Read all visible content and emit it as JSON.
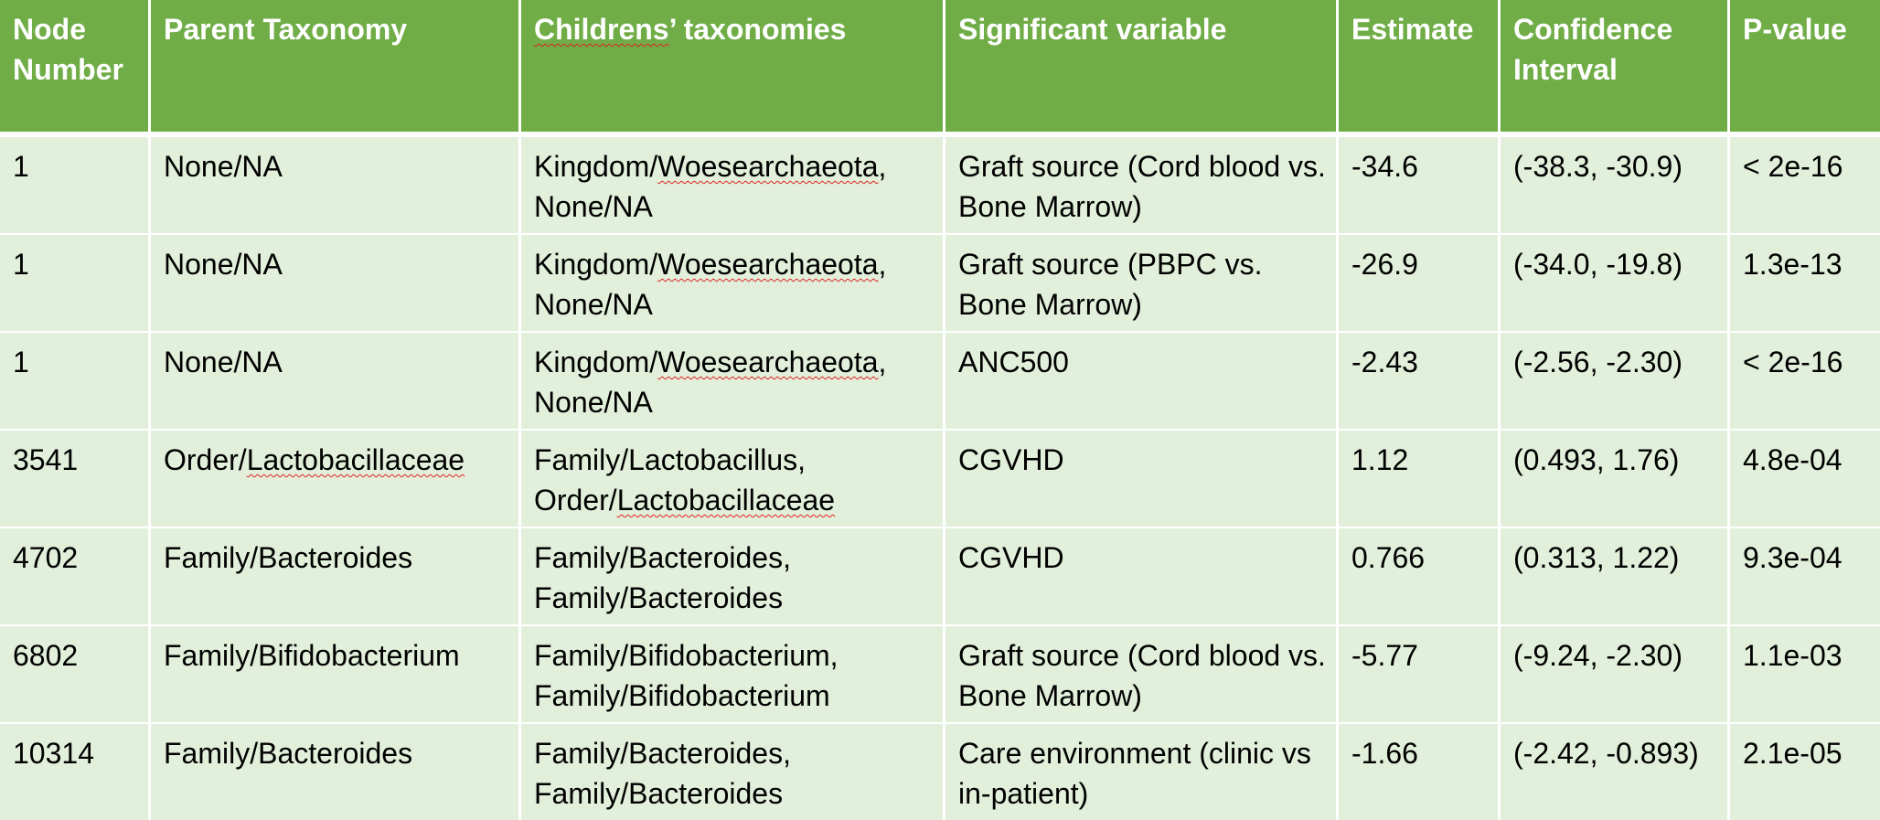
{
  "table": {
    "headers": [
      "Node Number",
      "Parent Taxonomy",
      "Childrens’ taxonomies",
      "Significant variable",
      "Estimate",
      "Confidence Interval",
      "P-value"
    ],
    "rows": [
      {
        "node": "1",
        "parent": "None/NA",
        "children_line1": "Kingdom/Woesearchaeota,",
        "children_line2": "None/NA",
        "variable": "Graft source (Cord blood vs. Bone Marrow)",
        "estimate": "-34.6",
        "ci": "(-38.3, -30.9)",
        "pvalue": "< 2e-16"
      },
      {
        "node": "1",
        "parent": "None/NA",
        "children_line1": "Kingdom/Woesearchaeota,",
        "children_line2": "None/NA",
        "variable": "Graft source (PBPC vs. Bone Marrow)",
        "estimate": "-26.9",
        "ci": "(-34.0, -19.8)",
        "pvalue": "1.3e-13"
      },
      {
        "node": "1",
        "parent": "None/NA",
        "children_line1": "Kingdom/Woesearchaeota,",
        "children_line2": "None/NA",
        "variable": "ANC500",
        "estimate": "-2.43",
        "ci": "(-2.56, -2.30)",
        "pvalue": "< 2e-16"
      },
      {
        "node": "3541",
        "parent": "Order/Lactobacillaceae",
        "children_line1": "Family/Lactobacillus,",
        "children_line2": "Order/Lactobacillaceae",
        "variable": "CGVHD",
        "estimate": "1.12",
        "ci": "(0.493, 1.76)",
        "pvalue": "4.8e-04"
      },
      {
        "node": "4702",
        "parent": "Family/Bacteroides",
        "children_line1": "Family/Bacteroides,",
        "children_line2": "Family/Bacteroides",
        "variable": "CGVHD",
        "estimate": "0.766",
        "ci": "(0.313, 1.22)",
        "pvalue": "9.3e-04"
      },
      {
        "node": "6802",
        "parent": "Family/Bifidobacterium",
        "children_line1": "Family/Bifidobacterium,",
        "children_line2": "Family/Bifidobacterium",
        "variable": "Graft source (Cord blood vs. Bone Marrow)",
        "estimate": "-5.77",
        "ci": "(-9.24, -2.30)",
        "pvalue": "1.1e-03"
      },
      {
        "node": "10314",
        "parent": "Family/Bacteroides",
        "children_line1": "Family/Bacteroides,",
        "children_line2": "Family/Bacteroides",
        "variable": "Care environment (clinic vs in-patient)",
        "estimate": "-1.66",
        "ci": "(-2.42, -0.893)",
        "pvalue": "2.1e-05"
      }
    ]
  },
  "colors": {
    "header_bg": "#70ad47",
    "row_bg": "#e2efda",
    "spellcheck_underline": "#dd2222"
  }
}
